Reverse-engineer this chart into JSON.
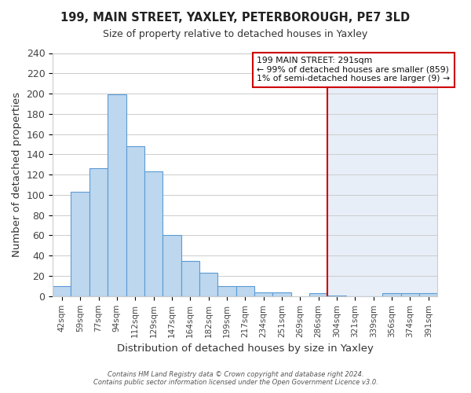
{
  "title": "199, MAIN STREET, YAXLEY, PETERBOROUGH, PE7 3LD",
  "subtitle": "Size of property relative to detached houses in Yaxley",
  "xlabel": "Distribution of detached houses by size in Yaxley",
  "ylabel": "Number of detached properties",
  "bin_labels": [
    "42sqm",
    "59sqm",
    "77sqm",
    "94sqm",
    "112sqm",
    "129sqm",
    "147sqm",
    "164sqm",
    "182sqm",
    "199sqm",
    "217sqm",
    "234sqm",
    "251sqm",
    "269sqm",
    "286sqm",
    "304sqm",
    "321sqm",
    "339sqm",
    "356sqm",
    "374sqm",
    "391sqm"
  ],
  "bar_values": [
    10,
    103,
    126,
    199,
    148,
    123,
    60,
    35,
    23,
    10,
    10,
    4,
    4,
    0,
    3,
    1,
    0,
    0,
    3,
    3,
    3
  ],
  "bar_color": "#bdd7ee",
  "bar_edge_color": "#5b9bd5",
  "vline_x_idx": 14.5,
  "vline_color": "#cc0000",
  "ylim": [
    0,
    240
  ],
  "yticks": [
    0,
    20,
    40,
    60,
    80,
    100,
    120,
    140,
    160,
    180,
    200,
    220,
    240
  ],
  "legend_title": "199 MAIN STREET: 291sqm",
  "legend_line1": "← 99% of detached houses are smaller (859)",
  "legend_line2": "1% of semi-detached houses are larger (9) →",
  "legend_box_edge": "#cc0000",
  "bg_color_left": "#ffffff",
  "bg_color_right": "#e8eef7",
  "footer1": "Contains HM Land Registry data © Crown copyright and database right 2024.",
  "footer2": "Contains public sector information licensed under the Open Government Licence v3.0.",
  "grid_color": "#cccccc"
}
